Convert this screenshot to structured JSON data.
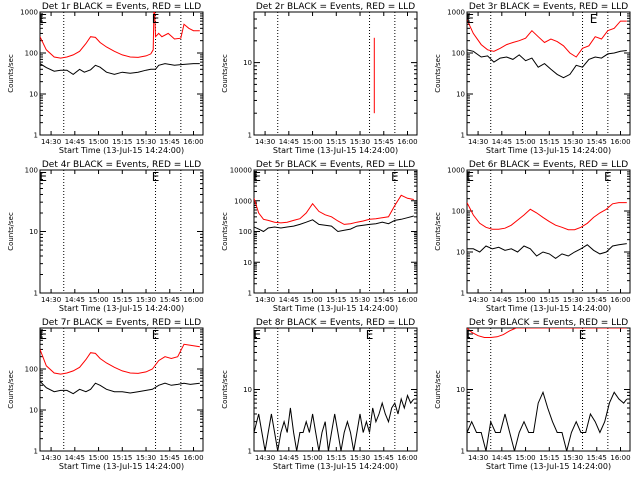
{
  "figure": {
    "x_ticks": [
      "14:30",
      "14:45",
      "15:00",
      "15:15",
      "15:30",
      "15:45",
      "16:00"
    ],
    "x_tick_minutes": [
      0,
      15,
      30,
      45,
      60,
      75,
      90
    ],
    "x_range_minutes": [
      -7,
      96
    ],
    "dotted_lines_minutes": [
      8,
      66,
      82
    ],
    "event_marker": "E",
    "colors": {
      "events": "#000000",
      "lld": "#ff0000",
      "frame": "#000000",
      "background": "#ffffff"
    }
  },
  "chart_data": [
    {
      "type": "line",
      "title": "Det 1r BLACK = Events, RED = LLD",
      "xlabel": "Start Time (13-Jul-15 14:24:00)",
      "ylabel": "Counts/sec",
      "yscale": "log",
      "ylim": [
        1,
        1000
      ],
      "y_ticks": [
        "1",
        "10",
        "100",
        "1000"
      ],
      "event_markers_minutes": [
        -5,
        66
      ],
      "series": [
        {
          "name": "Events",
          "color": "#000000",
          "x": [
            -7,
            -3,
            2,
            6,
            10,
            14,
            18,
            21,
            25,
            28,
            31,
            35,
            40,
            45,
            50,
            55,
            60,
            63,
            64.5,
            66,
            68,
            72,
            78,
            82,
            90,
            94
          ],
          "y": [
            55,
            44,
            36,
            38,
            38,
            30,
            40,
            34,
            39,
            50,
            45,
            34,
            30,
            34,
            32,
            34,
            38,
            40,
            40,
            40,
            50,
            55,
            50,
            52,
            55,
            55
          ]
        },
        {
          "name": "LLD",
          "color": "#ff0000",
          "x": [
            -7,
            -3,
            2,
            6,
            10,
            14,
            18,
            22,
            25,
            28,
            31,
            35,
            40,
            45,
            50,
            55,
            60,
            63,
            64.5,
            65,
            65.5,
            66,
            68,
            70,
            74,
            78,
            82,
            84,
            87,
            90,
            94
          ],
          "y": [
            250,
            120,
            80,
            75,
            80,
            90,
            110,
            170,
            250,
            240,
            180,
            140,
            110,
            90,
            80,
            78,
            85,
            95,
            120,
            1000,
            1000,
            250,
            300,
            250,
            300,
            220,
            230,
            500,
            400,
            350,
            350
          ]
        }
      ]
    },
    {
      "type": "line",
      "title": "Det 2r BLACK = Events, RED = LLD",
      "xlabel": "Start Time (13-Jul-15 14:24:00)",
      "ylabel": "Counts/sec",
      "yscale": "log",
      "ylim": [
        1,
        50
      ],
      "y_ticks": [
        "1",
        "10"
      ],
      "event_markers_minutes": [],
      "series": [
        {
          "name": "LLD",
          "color": "#ff0000",
          "x": [
            69,
            69
          ],
          "y": [
            2,
            22
          ]
        }
      ]
    },
    {
      "type": "line",
      "title": "Det 3r BLACK = Events, RED = LLD",
      "xlabel": "Start Time (13-Jul-15 14:24:00)",
      "ylabel": "Counts/sec",
      "yscale": "log",
      "ylim": [
        1,
        1000
      ],
      "y_ticks": [
        "1",
        "10",
        "100",
        "1000"
      ],
      "event_markers_minutes": [
        -5,
        73
      ],
      "series": [
        {
          "name": "Events",
          "color": "#000000",
          "x": [
            -7,
            -3,
            2,
            6,
            10,
            14,
            18,
            22,
            26,
            30,
            34,
            38,
            42,
            46,
            50,
            54,
            58,
            62,
            66,
            70,
            74,
            78,
            82,
            86,
            90,
            94
          ],
          "y": [
            120,
            110,
            80,
            85,
            60,
            75,
            80,
            70,
            90,
            65,
            75,
            45,
            55,
            40,
            30,
            25,
            30,
            50,
            45,
            70,
            80,
            75,
            95,
            100,
            110,
            115
          ]
        },
        {
          "name": "LLD",
          "color": "#ff0000",
          "x": [
            -7,
            -3,
            2,
            6,
            10,
            14,
            18,
            22,
            26,
            30,
            34,
            38,
            42,
            46,
            50,
            54,
            58,
            62,
            66,
            70,
            74,
            78,
            82,
            86,
            90,
            94
          ],
          "y": [
            650,
            300,
            160,
            120,
            110,
            130,
            160,
            180,
            200,
            230,
            350,
            250,
            180,
            220,
            190,
            150,
            100,
            80,
            130,
            150,
            250,
            220,
            350,
            400,
            600,
            600
          ]
        }
      ]
    },
    {
      "type": "line",
      "title": "Det 4r BLACK = Events, RED = LLD",
      "xlabel": "Start Time (13-Jul-15 14:24:00)",
      "ylabel": "Counts/sec",
      "yscale": "log",
      "ylim": [
        1,
        100
      ],
      "y_ticks": [
        "1",
        "10",
        "100"
      ],
      "event_markers_minutes": [
        -5,
        66
      ],
      "series": []
    },
    {
      "type": "line",
      "title": "Det 5r BLACK = Events, RED = LLD",
      "xlabel": "Start Time (13-Jul-15 14:24:00)",
      "ylabel": "Counts/sec",
      "yscale": "log",
      "ylim": [
        1,
        10000
      ],
      "y_ticks": [
        "1",
        "10",
        "100",
        "1000",
        "10000"
      ],
      "event_markers_minutes": [
        -5,
        82
      ],
      "series": [
        {
          "name": "Events",
          "color": "#000000",
          "x": [
            -7,
            -4,
            -1,
            2,
            6,
            10,
            14,
            18,
            22,
            26,
            30,
            34,
            38,
            42,
            46,
            50,
            54,
            58,
            62,
            66,
            70,
            74,
            78,
            82,
            86,
            90,
            94
          ],
          "y": [
            140,
            120,
            100,
            130,
            140,
            130,
            140,
            150,
            170,
            200,
            240,
            170,
            160,
            150,
            100,
            110,
            120,
            150,
            160,
            170,
            180,
            200,
            180,
            230,
            250,
            280,
            320
          ]
        },
        {
          "name": "LLD",
          "color": "#ff0000",
          "x": [
            -7,
            -4,
            -1,
            2,
            6,
            10,
            14,
            18,
            22,
            26,
            30,
            34,
            38,
            42,
            46,
            50,
            54,
            58,
            62,
            66,
            70,
            74,
            78,
            82,
            86,
            90,
            94
          ],
          "y": [
            1200,
            400,
            250,
            230,
            200,
            190,
            200,
            230,
            260,
            400,
            800,
            450,
            350,
            300,
            220,
            170,
            180,
            200,
            220,
            250,
            260,
            280,
            300,
            700,
            1500,
            1200,
            1100
          ]
        }
      ]
    },
    {
      "type": "line",
      "title": "Det 6r BLACK = Events, RED = LLD",
      "xlabel": "Start Time (13-Jul-15 14:24:00)",
      "ylabel": "Counts/sec",
      "yscale": "log",
      "ylim": [
        1,
        1000
      ],
      "y_ticks": [
        "1",
        "10",
        "100",
        "1000"
      ],
      "event_markers_minutes": [
        -5,
        82
      ],
      "series": [
        {
          "name": "Events",
          "color": "#000000",
          "x": [
            -7,
            -3,
            1,
            5,
            9,
            13,
            17,
            21,
            25,
            29,
            33,
            37,
            41,
            45,
            49,
            53,
            57,
            61,
            65,
            69,
            73,
            77,
            81,
            85,
            89,
            94
          ],
          "y": [
            12,
            12,
            10,
            14,
            12,
            13,
            11,
            12,
            10,
            14,
            12,
            8,
            10,
            9,
            7,
            9,
            8,
            10,
            12,
            15,
            11,
            9,
            10,
            14,
            15,
            16
          ]
        },
        {
          "name": "LLD",
          "color": "#ff0000",
          "x": [
            -7,
            -3,
            1,
            5,
            9,
            13,
            17,
            21,
            25,
            29,
            33,
            37,
            41,
            45,
            49,
            53,
            57,
            61,
            65,
            69,
            73,
            77,
            81,
            85,
            89,
            94
          ],
          "y": [
            160,
            80,
            50,
            40,
            36,
            36,
            38,
            45,
            60,
            80,
            110,
            90,
            70,
            55,
            45,
            40,
            35,
            35,
            40,
            50,
            70,
            90,
            110,
            150,
            160,
            160
          ]
        }
      ]
    },
    {
      "type": "line",
      "title": "Det 7r BLACK = Events, RED = LLD",
      "xlabel": "Start Time (13-Jul-15 14:24:00)",
      "ylabel": "Counts/sec",
      "yscale": "log",
      "ylim": [
        1,
        1000
      ],
      "y_ticks": [
        "1",
        "10",
        "100"
      ],
      "event_markers_minutes": [
        -5,
        66
      ],
      "series": [
        {
          "name": "Events",
          "color": "#000000",
          "x": [
            -7,
            -3,
            2,
            6,
            10,
            14,
            18,
            22,
            25,
            28,
            31,
            35,
            40,
            45,
            50,
            55,
            60,
            64,
            68,
            72,
            76,
            80,
            84,
            88,
            94
          ],
          "y": [
            50,
            35,
            28,
            30,
            30,
            25,
            32,
            28,
            32,
            45,
            40,
            32,
            28,
            28,
            26,
            28,
            30,
            32,
            40,
            45,
            40,
            42,
            45,
            42,
            45
          ]
        },
        {
          "name": "LLD",
          "color": "#ff0000",
          "x": [
            -7,
            -3,
            2,
            6,
            10,
            14,
            18,
            22,
            25,
            28,
            31,
            35,
            40,
            45,
            50,
            55,
            60,
            64,
            68,
            72,
            76,
            80,
            84,
            88,
            94
          ],
          "y": [
            300,
            120,
            80,
            75,
            80,
            90,
            110,
            170,
            250,
            240,
            180,
            140,
            110,
            90,
            80,
            78,
            85,
            100,
            160,
            200,
            180,
            200,
            400,
            380,
            350
          ]
        }
      ]
    },
    {
      "type": "line",
      "title": "Det 8r BLACK = Events, RED = LLD",
      "xlabel": "Start Time (13-Jul-15 14:24:00)",
      "ylabel": "Counts/sec",
      "yscale": "log",
      "ylim": [
        1,
        100
      ],
      "y_ticks": [
        "1",
        "10"
      ],
      "event_markers_minutes": [
        -5,
        66
      ],
      "series": [
        {
          "name": "Events",
          "color": "#000000",
          "x": [
            -7,
            -4,
            -2,
            0,
            2,
            4,
            6,
            8,
            10,
            12,
            14,
            16,
            18,
            20,
            22,
            24,
            26,
            28,
            30,
            32,
            34,
            36,
            38,
            40,
            42,
            44,
            46,
            48,
            50,
            52,
            54,
            56,
            58,
            60,
            62,
            64,
            66,
            68,
            70,
            72,
            74,
            76,
            78,
            80,
            82,
            84,
            86,
            88,
            90,
            92,
            94
          ],
          "y": [
            2,
            4,
            2,
            1,
            2,
            4,
            2,
            1,
            2,
            3,
            2,
            5,
            2,
            1,
            2,
            2,
            3,
            2,
            4,
            2,
            1,
            2,
            3,
            1,
            2,
            4,
            2,
            1,
            2,
            3,
            2,
            1,
            2,
            4,
            2,
            3,
            2,
            5,
            3,
            4,
            6,
            4,
            3,
            5,
            6,
            4,
            7,
            5,
            8,
            6,
            7
          ]
        }
      ]
    },
    {
      "type": "line",
      "title": "Det 9r BLACK = Events, RED = LLD",
      "xlabel": "Start Time (13-Jul-15 14:24:00)",
      "ylabel": "Counts/sec",
      "yscale": "log",
      "ylim": [
        1,
        100
      ],
      "y_ticks": [
        "1",
        "10"
      ],
      "event_markers_minutes": [
        -5,
        66
      ],
      "series": [
        {
          "name": "Events",
          "color": "#000000",
          "x": [
            -7,
            -4,
            -1,
            2,
            5,
            8,
            11,
            14,
            17,
            20,
            23,
            26,
            29,
            32,
            35,
            38,
            41,
            44,
            47,
            50,
            53,
            56,
            59,
            62,
            65,
            68,
            71,
            74,
            77,
            80,
            83,
            86,
            89,
            92,
            94
          ],
          "y": [
            2,
            3,
            2,
            2,
            1,
            3,
            2,
            2,
            4,
            2,
            1,
            2,
            3,
            2,
            2,
            6,
            9,
            5,
            3,
            2,
            2,
            1,
            2,
            3,
            2,
            2,
            4,
            3,
            2,
            3,
            6,
            9,
            7,
            6,
            7
          ]
        },
        {
          "name": "LLD",
          "color": "#ff0000",
          "x": [
            -7,
            -4,
            0,
            4,
            8,
            12,
            16,
            20,
            24,
            28,
            32,
            36,
            40,
            44,
            48,
            52,
            56,
            60,
            64,
            68,
            72,
            76,
            80,
            84,
            88,
            92,
            94
          ],
          "y": [
            100,
            85,
            75,
            70,
            70,
            72,
            78,
            90,
            100,
            100,
            100,
            100,
            100,
            100,
            100,
            100,
            100,
            100,
            100,
            100,
            100,
            100,
            100,
            100,
            100,
            100,
            100
          ]
        }
      ]
    }
  ]
}
